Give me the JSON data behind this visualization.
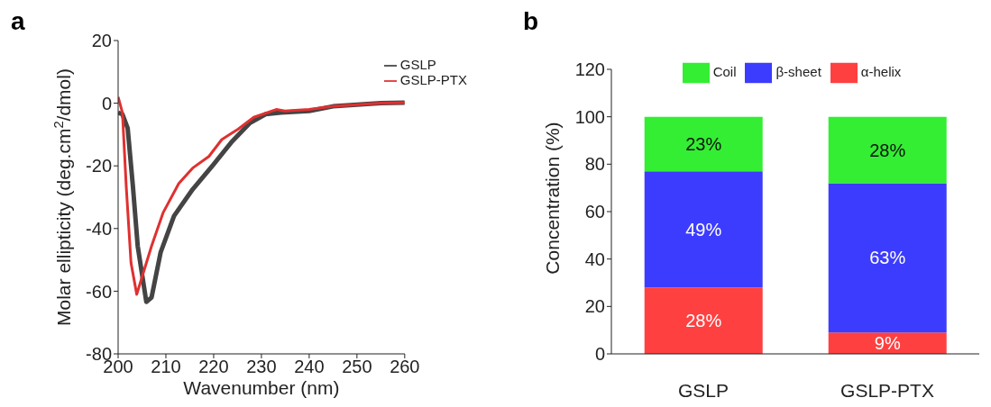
{
  "chart_data": [
    {
      "type": "line",
      "annotations": [
        "a"
      ],
      "xlabel": "Wavenumber (nm)",
      "ylabel": "Molar ellipticity (deg.cm$^{2}$/dmol)",
      "xlim": [
        200,
        260
      ],
      "xticks": [
        200,
        210,
        220,
        230,
        240,
        250,
        260
      ],
      "ylim": [
        -80,
        20
      ],
      "yticks": [
        -80,
        -60,
        -40,
        -20,
        0,
        20
      ],
      "grid": false,
      "legend": "top right",
      "marker": "none",
      "line_style": "solid",
      "series": [
        {
          "name": "GSLP",
          "color": "#444444",
          "x": [
            200,
            200.9,
            202,
            203.1,
            204.1,
            205.9,
            207,
            208.9,
            211.7,
            215.6,
            219.9,
            223.7,
            227.6,
            230.9,
            234.1,
            240,
            245,
            250,
            255,
            260
          ],
          "values": [
            -3,
            -3.5,
            -8,
            -26.6,
            -45.6,
            -63.4,
            -62,
            -47.6,
            -36,
            -27.5,
            -19.7,
            -12.5,
            -6.3,
            -3.5,
            -3,
            -2.5,
            -1,
            -0.5,
            0,
            0.2
          ]
        },
        {
          "name": "GSLP-PTX",
          "color": "#e03030",
          "x": [
            200,
            200.9,
            201.7,
            202.7,
            203.9,
            205.1,
            207,
            209.4,
            212.7,
            215.6,
            219,
            221.7,
            225.1,
            228.4,
            233.1,
            234.9,
            240,
            245,
            250,
            255,
            260
          ],
          "values": [
            2,
            -3,
            -26.6,
            -51,
            -61,
            -55,
            -45.6,
            -35,
            -25.6,
            -20.7,
            -17,
            -11.6,
            -8.3,
            -4.5,
            -2,
            -2.5,
            -2,
            -1,
            -0.5,
            0,
            0.2
          ]
        }
      ]
    },
    {
      "type": "bar",
      "stacked": true,
      "annotations": [
        "b"
      ],
      "ylabel": "Concentration (%)",
      "categories": [
        "GSLP",
        "GSLP-PTX"
      ],
      "ylim": [
        0,
        120
      ],
      "yticks": [
        0,
        20,
        40,
        60,
        80,
        100,
        120
      ],
      "grid": false,
      "legend": "top",
      "series": [
        {
          "name": "α-helix",
          "color": "#ff4040",
          "values": [
            28,
            9
          ],
          "value_labels": [
            "28%",
            "9%"
          ]
        },
        {
          "name": "β-sheet",
          "color": "#3c3cff",
          "values": [
            49,
            63
          ],
          "value_labels": [
            "49%",
            "63%"
          ]
        },
        {
          "name": "Coil",
          "color": "#33ee33",
          "values": [
            23,
            28
          ],
          "value_labels": [
            "23%",
            "28%"
          ]
        }
      ]
    }
  ]
}
